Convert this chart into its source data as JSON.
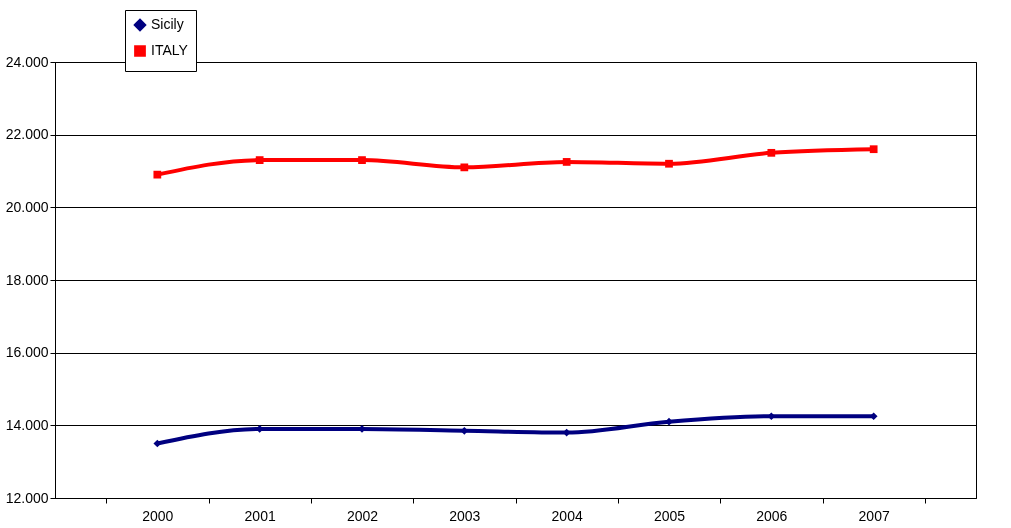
{
  "chart_data": {
    "type": "line",
    "categories": [
      "2000",
      "2001",
      "2002",
      "2003",
      "2004",
      "2005",
      "2006",
      "2007"
    ],
    "series": [
      {
        "name": "Sicily",
        "color": "#000080",
        "marker": "diamond",
        "values": [
          13500,
          13900,
          13900,
          13850,
          13800,
          14100,
          14250,
          14250
        ]
      },
      {
        "name": "ITALY",
        "color": "#ff0000",
        "marker": "square",
        "values": [
          20900,
          21300,
          21300,
          21100,
          21250,
          21200,
          21500,
          21600
        ]
      }
    ],
    "ylim": [
      12000,
      24000
    ],
    "yticks": [
      {
        "value": 12000,
        "label": "12.000"
      },
      {
        "value": 14000,
        "label": "14.000"
      },
      {
        "value": 16000,
        "label": "16.000"
      },
      {
        "value": 18000,
        "label": "18.000"
      },
      {
        "value": 20000,
        "label": "20.000"
      },
      {
        "value": 22000,
        "label": "22.000"
      },
      {
        "value": 24000,
        "label": "24.000"
      }
    ],
    "grid": "y",
    "legend": "top left",
    "line_style": "solid"
  }
}
